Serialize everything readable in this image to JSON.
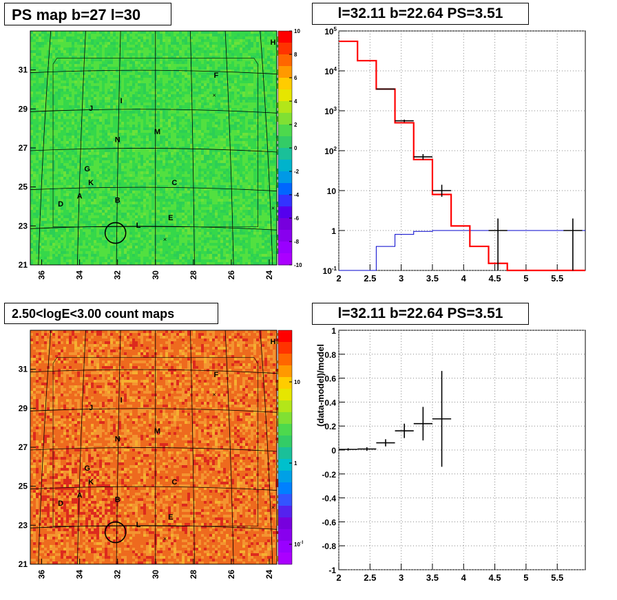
{
  "panel_titles": {
    "ps_map": "PS map b=27 l=30",
    "spectrum": "l=32.11 b=22.64 PS=3.51",
    "count_map": "2.50<logE<3.00 count maps",
    "residual": "l=32.11 b=22.64 PS=3.51"
  },
  "colors": {
    "data": "#000000",
    "model_red": "#ff0000",
    "model_blue": "#0000cc",
    "ps_map_bg": "#35d84a",
    "count_map_bg": "#ee6a1e"
  },
  "chart_data": [
    {
      "type": "heatmap",
      "title": "PS map b=27 l=30",
      "x_ticks": [
        "36",
        "34",
        "32",
        "30",
        "28",
        "26",
        "24"
      ],
      "y_ticks": [
        "31",
        "29",
        "27",
        "25",
        "23",
        "21"
      ],
      "xlim": [
        36.6,
        23.6
      ],
      "ylim": [
        21,
        33
      ],
      "colorbar": {
        "range": [
          -10,
          10
        ],
        "ticks": [
          "10",
          "8",
          "6",
          "4",
          "2",
          "0",
          "-2",
          "-4",
          "-6",
          "-8",
          "-10"
        ]
      },
      "sources": [
        {
          "label": "H",
          "l": 23.8,
          "b": 32.3
        },
        {
          "label": "F",
          "l": 26.8,
          "b": 30.6
        },
        {
          "label": "I",
          "l": 31.8,
          "b": 29.3
        },
        {
          "label": "J",
          "l": 33.4,
          "b": 28.9
        },
        {
          "label": "M",
          "l": 29.9,
          "b": 27.7
        },
        {
          "label": "N",
          "l": 32.0,
          "b": 27.3
        },
        {
          "label": "G",
          "l": 33.6,
          "b": 25.8
        },
        {
          "label": "K",
          "l": 33.4,
          "b": 25.1
        },
        {
          "label": "C",
          "l": 29.0,
          "b": 25.1
        },
        {
          "label": "A",
          "l": 34.0,
          "b": 24.4
        },
        {
          "label": "B",
          "l": 32.0,
          "b": 24.2
        },
        {
          "label": "D",
          "l": 35.0,
          "b": 24.0
        },
        {
          "label": "E",
          "l": 29.2,
          "b": 23.3
        },
        {
          "label": "L",
          "l": 30.9,
          "b": 22.9
        }
      ],
      "circle": {
        "l": 32.11,
        "b": 22.64
      }
    },
    {
      "type": "line",
      "title": "l=32.11 b=22.64 PS=3.51",
      "xlim": [
        2.0,
        5.95
      ],
      "x_ticks": [
        "2",
        "2.5",
        "3",
        "3.5",
        "4",
        "4.5",
        "5",
        "5.5"
      ],
      "ylog": true,
      "ylim": [
        0.1,
        100000
      ],
      "y_ticks": [
        "10^-1",
        "1",
        "10",
        "10^2",
        "10^3",
        "10^4",
        "10^5"
      ],
      "bin_edges": [
        2.0,
        2.3,
        2.6,
        2.9,
        3.2,
        3.5,
        3.8,
        4.1,
        4.4,
        4.7,
        5.0,
        5.3,
        5.6,
        5.95
      ],
      "series": [
        {
          "values": [
            55000,
            18000,
            3500,
            500,
            60,
            8,
            1.3,
            0.4,
            0.15,
            0.1,
            0.1,
            0.1,
            0.1
          ]
        },
        {
          "values": [
            0.1,
            0.1,
            0.4,
            0.8,
            0.95,
            1.0,
            1.0,
            1.0,
            1.0,
            1.0,
            1.0,
            1.0,
            1.0
          ]
        }
      ],
      "data_points": [
        {
          "x": 2.75,
          "y": 3500,
          "xerr": 0.15
        },
        {
          "x": 3.05,
          "y": 560,
          "xerr": 0.15,
          "ylo": 520,
          "yhi": 600
        },
        {
          "x": 3.35,
          "y": 70,
          "xerr": 0.15,
          "ylo": 60,
          "yhi": 82
        },
        {
          "x": 3.65,
          "y": 10,
          "xerr": 0.15,
          "ylo": 7,
          "yhi": 14
        },
        {
          "x": 4.55,
          "y": 1.0,
          "xerr": 0.15,
          "ylo": 0.1,
          "yhi": 2.0
        },
        {
          "x": 5.75,
          "y": 1.0,
          "xerr": 0.15,
          "ylo": 0.1,
          "yhi": 2.0
        }
      ]
    },
    {
      "type": "heatmap",
      "title": "2.50<logE<3.00 count maps",
      "x_ticks": [
        "36",
        "34",
        "32",
        "30",
        "28",
        "26",
        "24"
      ],
      "y_ticks": [
        "31",
        "29",
        "27",
        "25",
        "23",
        "21"
      ],
      "xlim": [
        36.6,
        23.6
      ],
      "ylim": [
        21,
        33
      ],
      "colorbar": {
        "log": true,
        "ticks": [
          "10",
          "1",
          "10^-1"
        ]
      },
      "circle": {
        "l": 32.11,
        "b": 22.64
      }
    },
    {
      "type": "scatter",
      "title": "l=32.11 b=22.64 PS=3.51",
      "ylabel": "(data-model)/model",
      "xlim": [
        2.0,
        5.95
      ],
      "ylim": [
        -1,
        1
      ],
      "x_ticks": [
        "2",
        "2.5",
        "3",
        "3.5",
        "4",
        "4.5",
        "5",
        "5.5"
      ],
      "y_ticks": [
        "1",
        "0.8",
        "0.6",
        "0.4",
        "0.2",
        "0",
        "-0.2",
        "-0.4",
        "-0.6",
        "-0.8",
        "-1"
      ],
      "points": [
        {
          "x": 2.15,
          "y": 0.005,
          "xerr": 0.15,
          "yerr": 0.01
        },
        {
          "x": 2.45,
          "y": 0.008,
          "xerr": 0.15,
          "yerr": 0.015
        },
        {
          "x": 2.75,
          "y": 0.06,
          "xerr": 0.15,
          "yerr": 0.03
        },
        {
          "x": 3.05,
          "y": 0.16,
          "xerr": 0.15,
          "yerr": 0.06
        },
        {
          "x": 3.35,
          "y": 0.22,
          "xerr": 0.15,
          "yerr": 0.14
        },
        {
          "x": 3.65,
          "y": 0.26,
          "xerr": 0.15,
          "yerr": 0.4
        }
      ]
    }
  ]
}
